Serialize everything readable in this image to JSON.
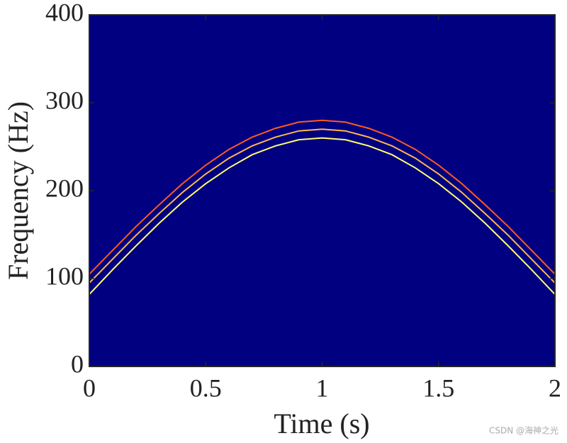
{
  "chart_data": {
    "type": "line",
    "xlabel": "Time (s)",
    "ylabel": "Frequency (Hz)",
    "x": [
      0,
      0.1,
      0.2,
      0.3,
      0.4,
      0.5,
      0.6,
      0.7,
      0.8,
      0.9,
      1,
      1.1,
      1.2,
      1.3,
      1.4,
      1.5,
      1.6,
      1.7,
      1.8,
      1.9,
      2
    ],
    "series": [
      {
        "color": "#ff5a1e",
        "values": [
          105,
          132,
          159,
          184,
          208,
          229,
          247,
          261,
          271,
          278,
          280,
          278,
          271,
          261,
          247,
          229,
          208,
          184,
          159,
          132,
          105
        ]
      },
      {
        "color": "#ffb84a",
        "values": [
          95,
          122,
          149,
          174,
          198,
          219,
          237,
          251,
          261,
          268,
          270,
          268,
          261,
          251,
          237,
          219,
          198,
          174,
          149,
          122,
          95
        ]
      },
      {
        "color": "#ffff70",
        "values": [
          82,
          110,
          137,
          163,
          187,
          208,
          226,
          241,
          251,
          258,
          260,
          258,
          251,
          241,
          226,
          208,
          187,
          163,
          137,
          110,
          82
        ]
      }
    ],
    "background": "#000080",
    "xlim": [
      0,
      2
    ],
    "xticks": [
      0,
      0.5,
      1,
      1.5,
      2
    ],
    "ylim": [
      0,
      400
    ],
    "yticks": [
      0,
      100,
      200,
      300,
      400
    ],
    "watermark": "CSDN @海神之光"
  }
}
